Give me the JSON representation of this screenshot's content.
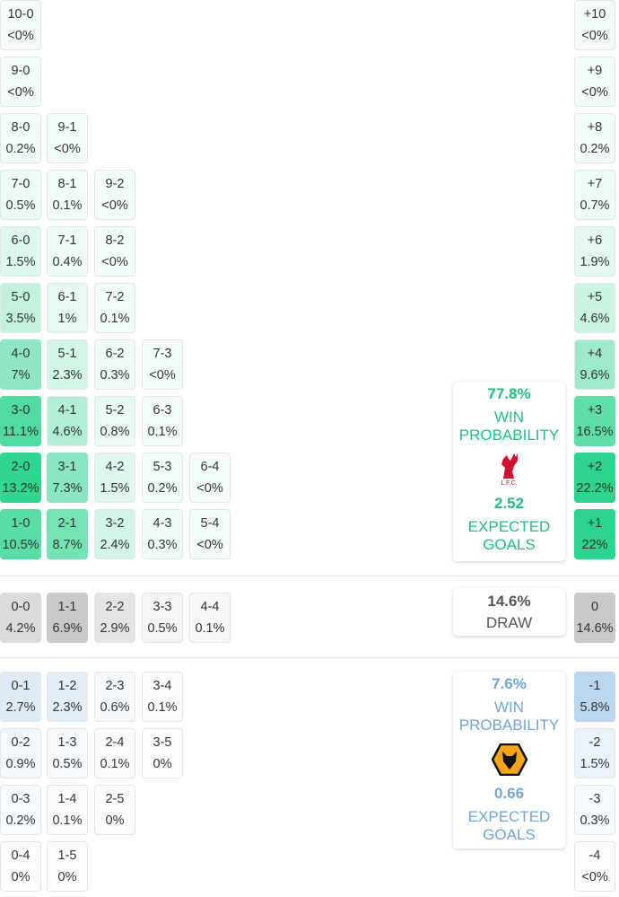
{
  "home_rows": [
    [
      {
        "score": "1-0",
        "pct": "10.5%"
      },
      {
        "score": "2-1",
        "pct": "8.7%"
      },
      {
        "score": "3-2",
        "pct": "2.4%"
      },
      {
        "score": "4-3",
        "pct": "0.3%"
      },
      {
        "score": "5-4",
        "pct": "<0%"
      }
    ],
    [
      {
        "score": "2-0",
        "pct": "13.2%"
      },
      {
        "score": "3-1",
        "pct": "7.3%"
      },
      {
        "score": "4-2",
        "pct": "1.5%"
      },
      {
        "score": "5-3",
        "pct": "0.2%"
      },
      {
        "score": "6-4",
        "pct": "<0%"
      }
    ],
    [
      {
        "score": "3-0",
        "pct": "11.1%"
      },
      {
        "score": "4-1",
        "pct": "4.6%"
      },
      {
        "score": "5-2",
        "pct": "0.8%"
      },
      {
        "score": "6-3",
        "pct": "0.1%"
      }
    ],
    [
      {
        "score": "4-0",
        "pct": "7%"
      },
      {
        "score": "5-1",
        "pct": "2.3%"
      },
      {
        "score": "6-2",
        "pct": "0.3%"
      },
      {
        "score": "7-3",
        "pct": "<0%"
      }
    ],
    [
      {
        "score": "5-0",
        "pct": "3.5%"
      },
      {
        "score": "6-1",
        "pct": "1%"
      },
      {
        "score": "7-2",
        "pct": "0.1%"
      }
    ],
    [
      {
        "score": "6-0",
        "pct": "1.5%"
      },
      {
        "score": "7-1",
        "pct": "0.4%"
      },
      {
        "score": "8-2",
        "pct": "<0%"
      }
    ],
    [
      {
        "score": "7-0",
        "pct": "0.5%"
      },
      {
        "score": "8-1",
        "pct": "0.1%"
      },
      {
        "score": "9-2",
        "pct": "<0%"
      }
    ],
    [
      {
        "score": "8-0",
        "pct": "0.2%"
      },
      {
        "score": "9-1",
        "pct": "<0%"
      }
    ],
    [
      {
        "score": "9-0",
        "pct": "<0%"
      }
    ],
    [
      {
        "score": "10-0",
        "pct": "<0%"
      }
    ]
  ],
  "draw_row": [
    {
      "score": "0-0",
      "pct": "4.2%"
    },
    {
      "score": "1-1",
      "pct": "6.9%"
    },
    {
      "score": "2-2",
      "pct": "2.9%"
    },
    {
      "score": "3-3",
      "pct": "0.5%"
    },
    {
      "score": "4-4",
      "pct": "0.1%"
    }
  ],
  "away_rows": [
    [
      {
        "score": "0-1",
        "pct": "2.7%"
      },
      {
        "score": "1-2",
        "pct": "2.3%"
      },
      {
        "score": "2-3",
        "pct": "0.6%"
      },
      {
        "score": "3-4",
        "pct": "0.1%"
      }
    ],
    [
      {
        "score": "0-2",
        "pct": "0.9%"
      },
      {
        "score": "1-3",
        "pct": "0.5%"
      },
      {
        "score": "2-4",
        "pct": "0.1%"
      },
      {
        "score": "3-5",
        "pct": "0%"
      }
    ],
    [
      {
        "score": "0-3",
        "pct": "0.2%"
      },
      {
        "score": "1-4",
        "pct": "0.1%"
      },
      {
        "score": "2-5",
        "pct": "0%"
      }
    ],
    [
      {
        "score": "0-4",
        "pct": "0%"
      },
      {
        "score": "1-5",
        "pct": "0%"
      }
    ]
  ],
  "margins_home": [
    {
      "score": "+1",
      "pct": "22%"
    },
    {
      "score": "+2",
      "pct": "22.2%"
    },
    {
      "score": "+3",
      "pct": "16.5%"
    },
    {
      "score": "+4",
      "pct": "9.6%"
    },
    {
      "score": "+5",
      "pct": "4.6%"
    },
    {
      "score": "+6",
      "pct": "1.9%"
    },
    {
      "score": "+7",
      "pct": "0.7%"
    },
    {
      "score": "+8",
      "pct": "0.2%"
    },
    {
      "score": "+9",
      "pct": "<0%"
    },
    {
      "score": "+10",
      "pct": "<0%"
    }
  ],
  "margin_draw": {
    "score": "0",
    "pct": "14.6%"
  },
  "margins_away": [
    {
      "score": "-1",
      "pct": "5.8%"
    },
    {
      "score": "-2",
      "pct": "1.5%"
    },
    {
      "score": "-3",
      "pct": "0.3%"
    },
    {
      "score": "-4",
      "pct": "<0%"
    }
  ],
  "home_summary": {
    "win_pct": "77.8%",
    "win_label_1": "WIN",
    "win_label_2": "PROBABILITY",
    "crest_text": "L.F.C.",
    "xg": "2.52",
    "xg_label_1": "EXPECTED",
    "xg_label_2": "GOALS",
    "color": "#20c07c"
  },
  "draw_summary": {
    "pct": "14.6%",
    "label": "DRAW"
  },
  "away_summary": {
    "win_pct": "7.6%",
    "win_label_1": "WIN",
    "win_label_2": "PROBABILITY",
    "xg": "0.66",
    "xg_label_1": "EXPECTED",
    "xg_label_2": "GOALS",
    "color": "#6fa6d4"
  },
  "colors": {
    "home": "#2ed38f",
    "away": "#b9d6ef",
    "draw": "#c8c8c8"
  }
}
